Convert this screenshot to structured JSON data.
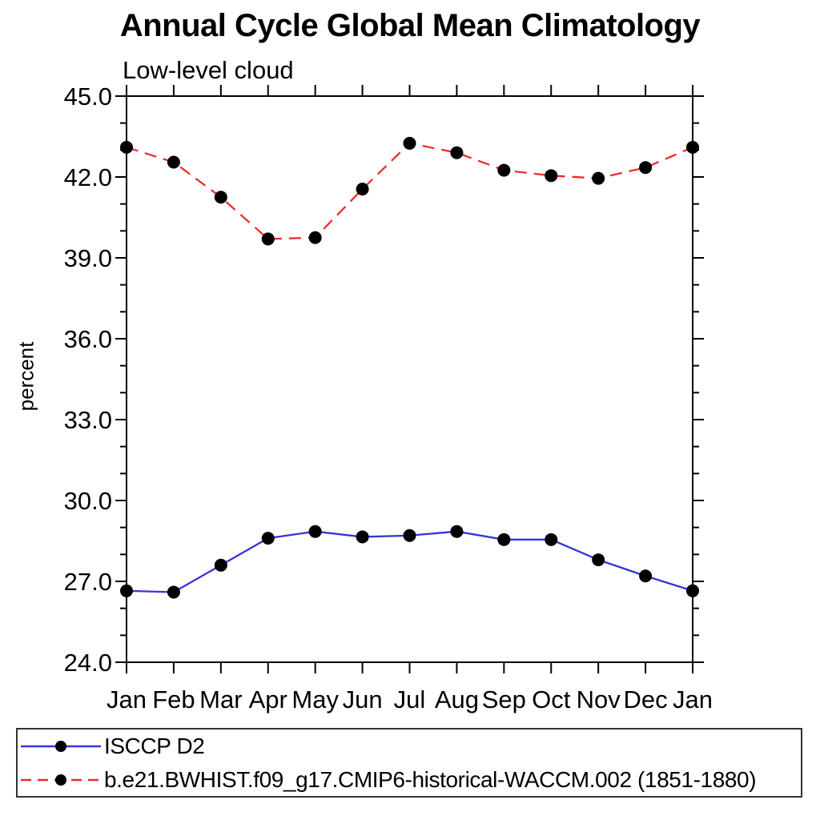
{
  "chart_data": {
    "type": "line",
    "title": "Annual Cycle Global Mean Climatology",
    "subtitle": "Low-level cloud",
    "xlabel": "",
    "ylabel": "percent",
    "categories": [
      "Jan",
      "Feb",
      "Mar",
      "Apr",
      "May",
      "Jun",
      "Jul",
      "Aug",
      "Sep",
      "Oct",
      "Nov",
      "Dec",
      "Jan"
    ],
    "ylim": [
      24.0,
      45.0
    ],
    "ytick_major_interval": 3.0,
    "ytick_minor_interval": 1.0,
    "ytick_labels": [
      "24.0",
      "27.0",
      "30.0",
      "33.0",
      "36.0",
      "39.0",
      "42.0",
      "45.0"
    ],
    "grid": false,
    "legend_position": "bottom",
    "axis_color": "#000000",
    "marker_shape": "filled-circle",
    "marker_color": "#000000",
    "series": [
      {
        "name": "ISCCP D2",
        "color": "#3535d6",
        "line_style": "solid",
        "values": [
          26.65,
          26.6,
          27.6,
          28.6,
          28.85,
          28.65,
          28.7,
          28.85,
          28.55,
          28.55,
          27.8,
          27.2,
          26.65
        ]
      },
      {
        "name": "b.e21.BWHIST.f09_g17.CMIP6-historical-WACCM.002 (1851-1880)",
        "color": "#ee2e28",
        "line_style": "dashed",
        "values": [
          43.1,
          42.55,
          41.25,
          39.7,
          39.75,
          41.55,
          43.25,
          42.9,
          42.25,
          42.05,
          41.95,
          42.35,
          43.1
        ]
      }
    ]
  }
}
